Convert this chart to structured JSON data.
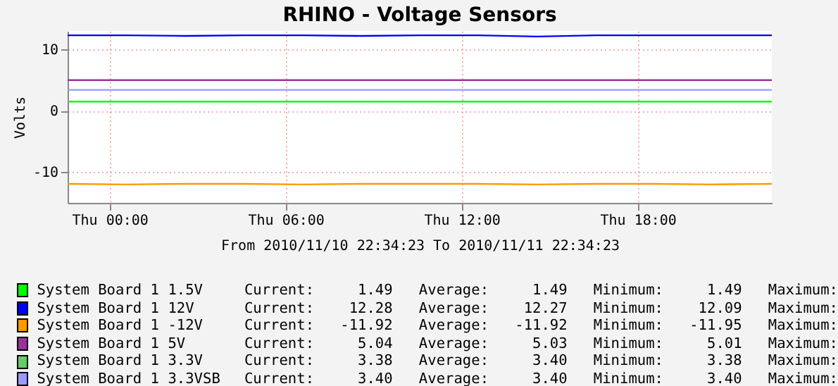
{
  "chart_data": {
    "type": "line",
    "title": "RHINO - Voltage Sensors",
    "ylabel": "Volts",
    "xlabel": "From 2010/11/10 22:34:23 To 2010/11/11 22:34:23",
    "x": [
      "2010-11-10T22:34",
      "2010-11-11T00:34",
      "2010-11-11T02:34",
      "2010-11-11T04:34",
      "2010-11-11T06:34",
      "2010-11-11T08:34",
      "2010-11-11T10:34",
      "2010-11-11T12:34",
      "2010-11-11T14:34",
      "2010-11-11T16:34",
      "2010-11-11T18:34",
      "2010-11-11T20:34",
      "2010-11-11T22:34"
    ],
    "series": [
      {
        "name": "System Board 1 1.5V",
        "color": "#00ff00",
        "values": [
          1.5,
          1.5,
          1.5,
          1.5,
          1.5,
          1.5,
          1.5,
          1.5,
          1.5,
          1.5,
          1.5,
          1.5,
          1.5
        ]
      },
      {
        "name": "System Board 1 12V",
        "color": "#0000ff",
        "values": [
          12.3,
          12.3,
          12.2,
          12.3,
          12.3,
          12.2,
          12.3,
          12.3,
          12.1,
          12.3,
          12.3,
          12.3,
          12.3
        ]
      },
      {
        "name": "System Board 1 -12V",
        "color": "#ff9900",
        "values": [
          -11.9,
          -12.0,
          -11.9,
          -11.9,
          -12.0,
          -11.9,
          -11.9,
          -11.9,
          -12.0,
          -11.9,
          -11.9,
          -12.0,
          -11.9
        ]
      },
      {
        "name": "System Board 1 5V",
        "color": "#993399",
        "values": [
          5.0,
          5.0,
          5.0,
          5.0,
          5.0,
          5.0,
          5.0,
          5.0,
          5.0,
          5.0,
          5.0,
          5.0,
          5.0
        ]
      },
      {
        "name": "System Board 1 3.3V",
        "color": "#66cc66",
        "values": [
          null,
          null,
          null,
          null,
          null,
          null,
          null,
          null,
          null,
          null,
          null,
          null,
          null
        ]
      },
      {
        "name": "System Board 1 3.3VSB",
        "color": "#9999ff",
        "values": [
          3.4,
          3.4,
          3.4,
          3.4,
          3.4,
          3.4,
          3.4,
          3.4,
          3.4,
          3.4,
          3.4,
          3.4,
          3.4
        ]
      }
    ],
    "annotations": [
      "Current:     1.49   Average:     1.49   Minimum:     1.49   Maximum:",
      "Current:    12.28   Average:    12.27   Minimum:    12.09   Maximum:",
      "Current:   -11.92   Average:   -11.92   Minimum:   -11.95   Maximum:",
      "Current:     5.04   Average:     5.03   Minimum:     5.01   Maximum:",
      "Current:     3.38   Average:     3.40   Minimum:     3.38   Maximum:",
      "Current:     3.40   Average:     3.40   Minimum:     3.40   Maximum:"
    ],
    "xlim": [
      "2010-11-10T22:34",
      "2010-11-11T22:34"
    ],
    "xticks": [
      {
        "value": "2010-11-11T00:00",
        "label": "Thu 00:00"
      },
      {
        "value": "2010-11-11T06:00",
        "label": "Thu 06:00"
      },
      {
        "value": "2010-11-11T12:00",
        "label": "Thu 12:00"
      },
      {
        "value": "2010-11-11T18:00",
        "label": "Thu 18:00"
      }
    ],
    "ylim": [
      -15,
      13
    ],
    "yticks": [
      -10,
      0,
      10
    ],
    "grid": true,
    "legend": "bottom",
    "marker": "none",
    "line_style": "solid"
  }
}
